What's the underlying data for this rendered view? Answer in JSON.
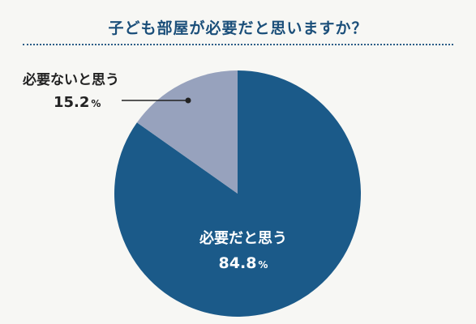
{
  "title": "子ども部屋が必要だと思いますか？",
  "chart_data": {
    "type": "pie",
    "title": "子ども部屋が必要だと思いますか？",
    "unit": "%",
    "slices": [
      {
        "label": "必要だと思う",
        "value": 84.8,
        "value_text": "84.8",
        "color": "#1b5a89"
      },
      {
        "label": "必要ないと思う",
        "value": 15.2,
        "value_text": "15.2",
        "color": "#97a2bd"
      }
    ],
    "start": "12 o'clock",
    "direction": "clockwise",
    "legend": "none",
    "label_colors": {
      "inside": "#ffffff",
      "outside": "#222222"
    }
  }
}
